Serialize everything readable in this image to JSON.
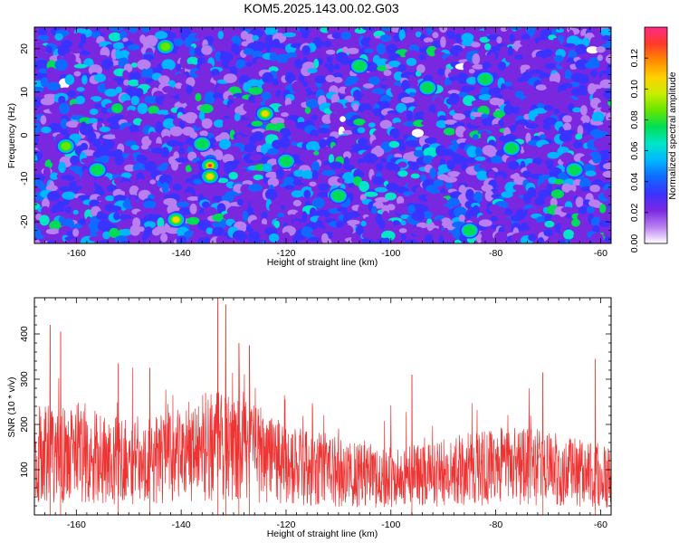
{
  "title": "KOM5.2025.143.00.02.G03",
  "chart_data": [
    {
      "type": "heatmap",
      "xlabel": "Height of straight line (km)",
      "ylabel": "Frequency (Hz)",
      "xlim": [
        -168,
        -58
      ],
      "ylim": [
        -25,
        25
      ],
      "xticks": [
        -160,
        -140,
        -120,
        -100,
        -80,
        -60
      ],
      "yticks": [
        -20,
        -10,
        0,
        10,
        20
      ],
      "colorbar": {
        "label": "Normalized spectral amplitude",
        "range": [
          0,
          0.14
        ],
        "ticks": [
          "0.00",
          "0.02",
          "0.04",
          "0.06",
          "0.08",
          "0.10",
          "0.12"
        ],
        "colors": [
          "#ffffff",
          "#b87ff0",
          "#7a28e0",
          "#3a33ff",
          "#0f6bff",
          "#00b7ff",
          "#00e6c8",
          "#00dd55",
          "#66e600",
          "#c8ee00",
          "#ffd000",
          "#ff8a00",
          "#ff3a2a",
          "#ff2a86"
        ]
      },
      "hotspots": [
        {
          "x": -134.5,
          "y": -7,
          "amp": 0.13
        },
        {
          "x": -134.5,
          "y": -9.5,
          "amp": 0.12
        },
        {
          "x": -124,
          "y": 5,
          "amp": 0.11
        },
        {
          "x": -141,
          "y": -19.5,
          "amp": 0.12
        },
        {
          "x": -143,
          "y": 20.5,
          "amp": 0.09
        },
        {
          "x": -162,
          "y": -2.5,
          "amp": 0.09
        },
        {
          "x": -136,
          "y": -2,
          "amp": 0.08
        },
        {
          "x": -110,
          "y": -14,
          "amp": 0.08
        },
        {
          "x": -85,
          "y": -22,
          "amp": 0.08
        },
        {
          "x": -77,
          "y": -3,
          "amp": 0.08
        },
        {
          "x": -93,
          "y": 11,
          "amp": 0.08
        },
        {
          "x": -65,
          "y": -8,
          "amp": 0.08
        },
        {
          "x": -156,
          "y": -8,
          "amp": 0.07
        },
        {
          "x": -82,
          "y": 13,
          "amp": 0.07
        },
        {
          "x": -106,
          "y": 16,
          "amp": 0.07
        },
        {
          "x": -120,
          "y": -6,
          "amp": 0.07
        }
      ]
    },
    {
      "type": "line",
      "xlabel": "Height of straight line (km)",
      "ylabel": "SNR (10 * v/v)",
      "xlim": [
        -168,
        -58
      ],
      "ylim": [
        0,
        480
      ],
      "xticks": [
        -160,
        -140,
        -120,
        -100,
        -80,
        -60
      ],
      "yticks": [
        100,
        200,
        300,
        400
      ],
      "color": "#ee3333",
      "peaks": [
        {
          "x": -165,
          "y": 420
        },
        {
          "x": -163,
          "y": 405
        },
        {
          "x": -152,
          "y": 335
        },
        {
          "x": -146,
          "y": 325
        },
        {
          "x": -133,
          "y": 480
        },
        {
          "x": -131.5,
          "y": 465
        },
        {
          "x": -129,
          "y": 380
        },
        {
          "x": -127,
          "y": 375
        },
        {
          "x": -96,
          "y": 310
        },
        {
          "x": -71,
          "y": 315
        },
        {
          "x": -61,
          "y": 345
        }
      ]
    }
  ]
}
